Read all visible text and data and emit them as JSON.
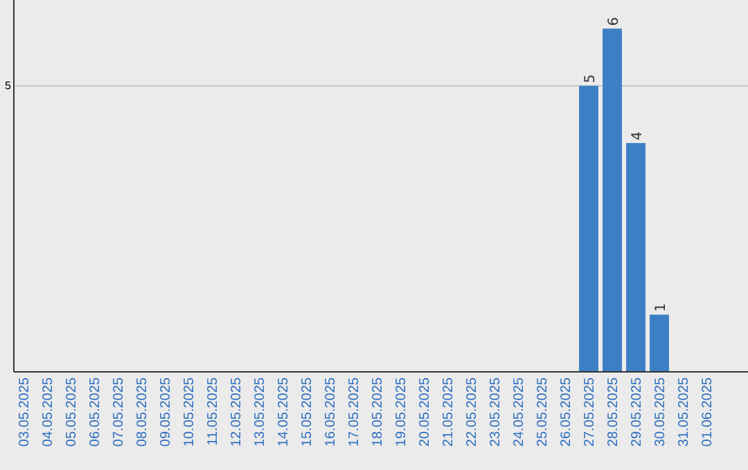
{
  "chart_data": {
    "type": "bar",
    "categories": [
      "03.05.2025",
      "04.05.2025",
      "05.05.2025",
      "06.05.2025",
      "07.05.2025",
      "08.05.2025",
      "09.05.2025",
      "10.05.2025",
      "11.05.2025",
      "12.05.2025",
      "13.05.2025",
      "14.05.2025",
      "15.05.2025",
      "16.05.2025",
      "17.05.2025",
      "18.05.2025",
      "19.05.2025",
      "20.05.2025",
      "21.05.2025",
      "22.05.2025",
      "23.05.2025",
      "24.05.2025",
      "25.05.2025",
      "26.05.2025",
      "27.05.2025",
      "28.05.2025",
      "29.05.2025",
      "30.05.2025",
      "31.05.2025",
      "01.06.2025"
    ],
    "values": [
      null,
      null,
      null,
      null,
      null,
      null,
      null,
      null,
      null,
      null,
      null,
      null,
      null,
      null,
      null,
      null,
      null,
      null,
      null,
      null,
      null,
      null,
      null,
      null,
      5,
      6,
      4,
      1,
      null,
      null
    ],
    "color": "#3d7fc4",
    "ylim": [
      0,
      6.5
    ],
    "yticks": [
      5
    ],
    "grid": "y",
    "data_labels": true
  }
}
